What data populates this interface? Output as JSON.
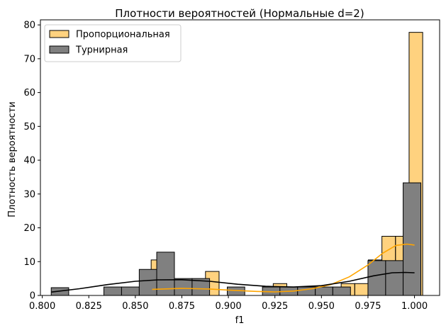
{
  "chart_data": {
    "type": "histogram",
    "title": "Плотности вероятностей (Нормальные d=2)",
    "xlabel": "f1",
    "ylabel": "Плотность вероятности",
    "xlim": [
      0.799,
      1.0135
    ],
    "ylim": [
      0,
      81.5
    ],
    "xticks": [
      0.8,
      0.825,
      0.85,
      0.875,
      0.9,
      0.925,
      0.95,
      0.975,
      1.0
    ],
    "xtick_labels": [
      "0.800",
      "0.825",
      "0.850",
      "0.875",
      "0.900",
      "0.925",
      "0.950",
      "0.975",
      "1.000"
    ],
    "yticks": [
      0,
      10,
      20,
      30,
      40,
      50,
      60,
      70,
      80
    ],
    "ytick_labels": [
      "0",
      "10",
      "20",
      "30",
      "40",
      "50",
      "60",
      "70",
      "80"
    ],
    "grid": false,
    "legend_position": "top-left",
    "series": [
      {
        "name": "Пропорциональная",
        "color": "#FFA500",
        "fill_opacity": 0.5,
        "bins": [
          [
            0.8585,
            0.8658,
            10.5
          ],
          [
            0.8877,
            0.895,
            7.1
          ],
          [
            0.9241,
            0.9314,
            3.5
          ],
          [
            0.9606,
            0.9679,
            3.5
          ],
          [
            0.9679,
            0.9752,
            3.5
          ],
          [
            0.9752,
            0.9825,
            10.5
          ],
          [
            0.9825,
            0.9898,
            17.5
          ],
          [
            0.9898,
            0.9971,
            17.5
          ],
          [
            0.9971,
            1.0044,
            77.8
          ]
        ],
        "kde": [
          [
            0.859,
            1.8
          ],
          [
            0.875,
            2.1
          ],
          [
            0.89,
            1.9
          ],
          [
            0.9,
            1.6
          ],
          [
            0.915,
            1.2
          ],
          [
            0.925,
            1.05
          ],
          [
            0.935,
            1.3
          ],
          [
            0.945,
            2.0
          ],
          [
            0.955,
            3.2
          ],
          [
            0.965,
            5.5
          ],
          [
            0.975,
            9.0
          ],
          [
            0.983,
            12.5
          ],
          [
            0.99,
            14.8
          ],
          [
            0.996,
            15.2
          ],
          [
            1.0,
            14.9
          ]
        ]
      },
      {
        "name": "Турнирная",
        "color": "#000000",
        "fill_color": "#808080",
        "fill_opacity": 1,
        "bins": [
          [
            0.8048,
            0.8142,
            2.3
          ],
          [
            0.8331,
            0.8426,
            2.5
          ],
          [
            0.8426,
            0.8521,
            2.5
          ],
          [
            0.8521,
            0.8615,
            7.7
          ],
          [
            0.8615,
            0.871,
            12.8
          ],
          [
            0.871,
            0.8805,
            5.0
          ],
          [
            0.8805,
            0.8899,
            5.0
          ],
          [
            0.8994,
            0.9088,
            2.5
          ],
          [
            0.9183,
            0.9277,
            2.5
          ],
          [
            0.9277,
            0.9372,
            2.5
          ],
          [
            0.9372,
            0.9467,
            2.5
          ],
          [
            0.9467,
            0.9561,
            2.5
          ],
          [
            0.9561,
            0.9656,
            2.5
          ],
          [
            0.975,
            0.9845,
            10.3
          ],
          [
            0.9845,
            0.9939,
            10.3
          ],
          [
            0.9939,
            1.0034,
            33.3
          ]
        ],
        "kde": [
          [
            0.805,
            1.0
          ],
          [
            0.82,
            2.0
          ],
          [
            0.835,
            3.2
          ],
          [
            0.85,
            4.2
          ],
          [
            0.862,
            4.6
          ],
          [
            0.875,
            4.65
          ],
          [
            0.89,
            4.2
          ],
          [
            0.905,
            3.3
          ],
          [
            0.92,
            2.7
          ],
          [
            0.935,
            2.5
          ],
          [
            0.95,
            2.9
          ],
          [
            0.965,
            4.2
          ],
          [
            0.978,
            5.8
          ],
          [
            0.988,
            6.7
          ],
          [
            0.995,
            6.8
          ],
          [
            1.0,
            6.7
          ]
        ]
      }
    ]
  }
}
